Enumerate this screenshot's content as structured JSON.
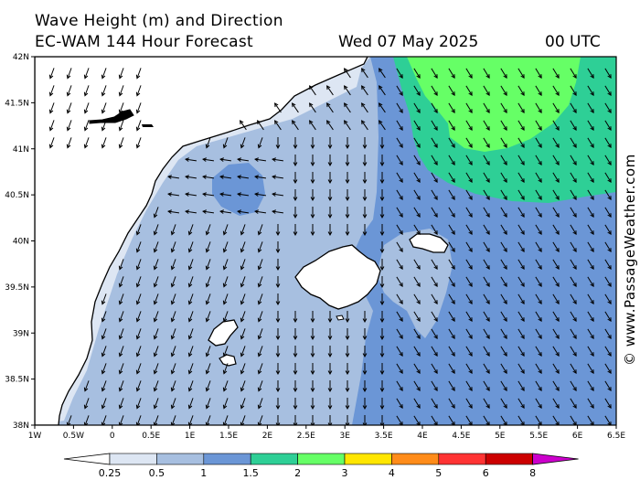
{
  "title_line1": "Wave Height (m) and Direction",
  "title_line2": "EC-WAM 144 Hour Forecast",
  "date": "Wed 07 May 2025",
  "time": "00 UTC",
  "credit": "© www.PassageWeather.com",
  "y_ticks": [
    "42N",
    "41.5N",
    "41N",
    "40.5N",
    "40N",
    "39.5N",
    "39N",
    "38.5N",
    "38N"
  ],
  "x_ticks": [
    "1W",
    "0.5W",
    "0",
    "0.5E",
    "1E",
    "1.5E",
    "2E",
    "2.5E",
    "3E",
    "3.5E",
    "4E",
    "4.5E",
    "5E",
    "5.5E",
    "6E",
    "6.5E"
  ],
  "colorbar": {
    "labels": [
      "0.25",
      "0.5",
      "1",
      "1.5",
      "2",
      "3",
      "4",
      "5",
      "6",
      "8"
    ],
    "colors": [
      "#ffffff",
      "#dde6f3",
      "#a7bfe0",
      "#6b96d6",
      "#2ecf96",
      "#66ff66",
      "#ffe600",
      "#ff8c1a",
      "#ff3333",
      "#cc0000",
      "#cc00cc"
    ]
  },
  "legend_colors": {
    "land": "#ffffff",
    "coast": "#000000",
    "band_025_05": "#dde6f3",
    "band_05_1": "#a7bfe0",
    "band_1_15": "#6b96d6",
    "band_15_2": "#2ecf96",
    "band_2_3": "#66ff66"
  }
}
